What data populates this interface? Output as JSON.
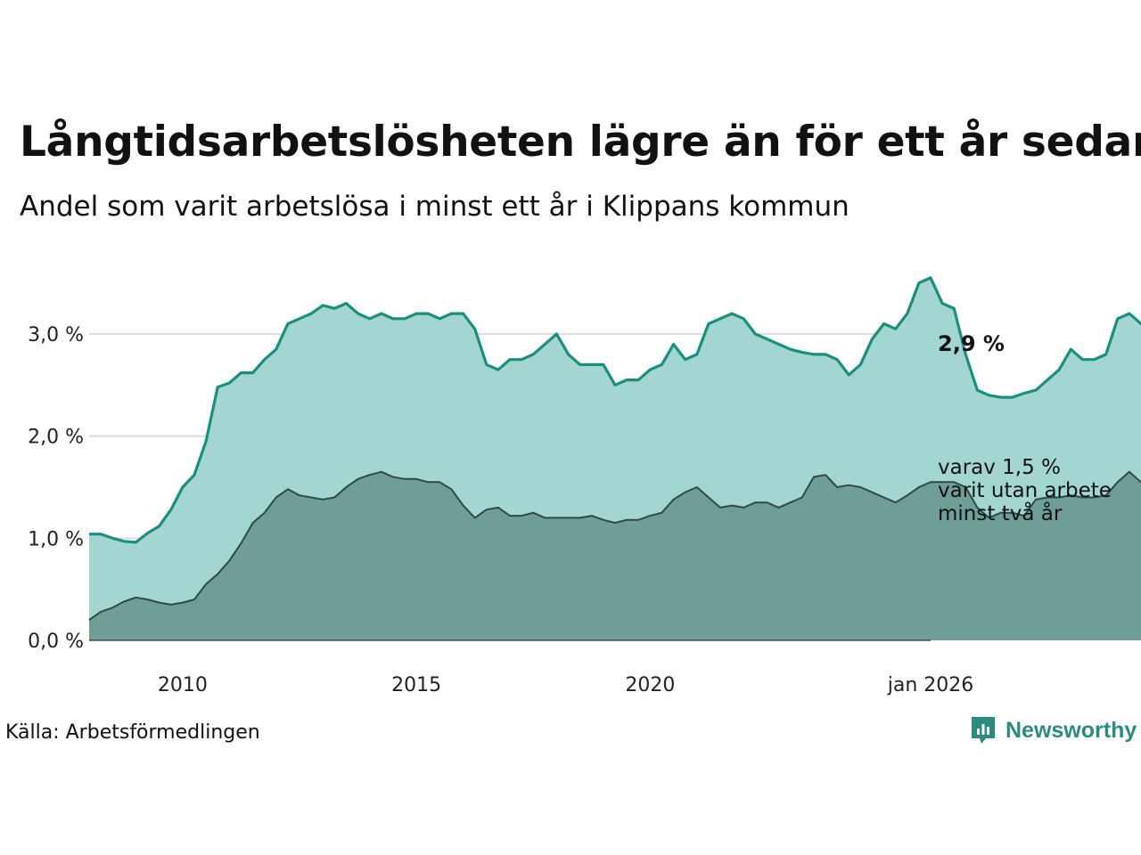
{
  "chart_data": {
    "type": "area",
    "title": "Långtidsarbetslösheten lägre än för ett år sedan",
    "subtitle": "Andel som varit arbetslösa i minst ett år i Klippans kommun",
    "xlabel": "",
    "ylabel": "",
    "x_start": 2008.0,
    "x_end": 2026.0,
    "x_step_years": 0.25,
    "xlim": [
      2008.0,
      2026.0
    ],
    "ylim": [
      0,
      3.7
    ],
    "x_ticks": [
      {
        "value": 2010,
        "label": "2010"
      },
      {
        "value": 2015,
        "label": "2015"
      },
      {
        "value": 2020,
        "label": "2020"
      },
      {
        "value": 2026,
        "label": "jan 2026"
      }
    ],
    "y_ticks": [
      {
        "value": 0,
        "label": "0,0 %"
      },
      {
        "value": 1,
        "label": "1,0 %"
      },
      {
        "value": 2,
        "label": "2,0 %"
      },
      {
        "value": 3,
        "label": "3,0 %"
      }
    ],
    "grid": true,
    "series": [
      {
        "name": "Arbetslösa minst ett år",
        "color": "#1a8f7e",
        "fill": "#a3d6d0",
        "values": [
          1.04,
          1.04,
          1.0,
          0.97,
          0.96,
          1.05,
          1.12,
          1.28,
          1.5,
          1.62,
          1.95,
          2.48,
          2.52,
          2.62,
          2.62,
          2.75,
          2.85,
          3.1,
          3.15,
          3.2,
          3.28,
          3.25,
          3.3,
          3.2,
          3.15,
          3.2,
          3.15,
          3.15,
          3.2,
          3.2,
          3.15,
          3.2,
          3.2,
          3.05,
          2.7,
          2.65,
          2.75,
          2.75,
          2.8,
          2.9,
          3.0,
          2.8,
          2.7,
          2.7,
          2.7,
          2.5,
          2.55,
          2.55,
          2.65,
          2.7,
          2.9,
          2.75,
          2.8,
          3.1,
          3.15,
          3.2,
          3.15,
          3.0,
          2.95,
          2.9,
          2.85,
          2.82,
          2.8,
          2.8,
          2.75,
          2.6,
          2.7,
          2.95,
          3.1,
          3.05,
          3.2,
          3.5,
          3.55,
          3.3,
          3.25,
          2.8,
          2.45,
          2.4,
          2.38,
          2.38,
          2.42,
          2.45,
          2.55,
          2.65,
          2.85,
          2.75,
          2.75,
          2.8,
          3.15,
          3.2,
          3.1,
          3.05,
          3.1,
          3.05,
          2.95,
          2.92,
          2.9
        ]
      },
      {
        "name": "varav utan arbete minst två år",
        "color": "#2f4a44",
        "fill": "#6f9e97",
        "values": [
          0.2,
          0.28,
          0.32,
          0.38,
          0.42,
          0.4,
          0.37,
          0.35,
          0.37,
          0.4,
          0.55,
          0.65,
          0.78,
          0.95,
          1.15,
          1.25,
          1.4,
          1.48,
          1.42,
          1.4,
          1.38,
          1.4,
          1.5,
          1.58,
          1.62,
          1.65,
          1.6,
          1.58,
          1.58,
          1.55,
          1.55,
          1.48,
          1.32,
          1.2,
          1.28,
          1.3,
          1.22,
          1.22,
          1.25,
          1.2,
          1.2,
          1.2,
          1.2,
          1.22,
          1.18,
          1.15,
          1.18,
          1.18,
          1.22,
          1.25,
          1.38,
          1.45,
          1.5,
          1.4,
          1.3,
          1.32,
          1.3,
          1.35,
          1.35,
          1.3,
          1.35,
          1.4,
          1.6,
          1.62,
          1.5,
          1.52,
          1.5,
          1.45,
          1.4,
          1.35,
          1.42,
          1.5,
          1.55,
          1.55,
          1.55,
          1.5,
          1.3,
          1.2,
          1.25,
          1.25,
          1.22,
          1.38,
          1.4,
          1.4,
          1.42,
          1.4,
          1.4,
          1.42,
          1.55,
          1.65,
          1.55,
          1.58,
          1.6,
          1.62,
          1.58,
          1.55,
          1.55
        ]
      }
    ],
    "annotations": {
      "end_value": "2,9 %",
      "note_lines": [
        "varav 1,5 %",
        "varit utan arbete",
        "minst två år"
      ]
    }
  },
  "footer": {
    "source": "Källa: Arbetsförmedlingen",
    "brand": "Newsworthy",
    "brand_color": "#2a8b7e"
  }
}
